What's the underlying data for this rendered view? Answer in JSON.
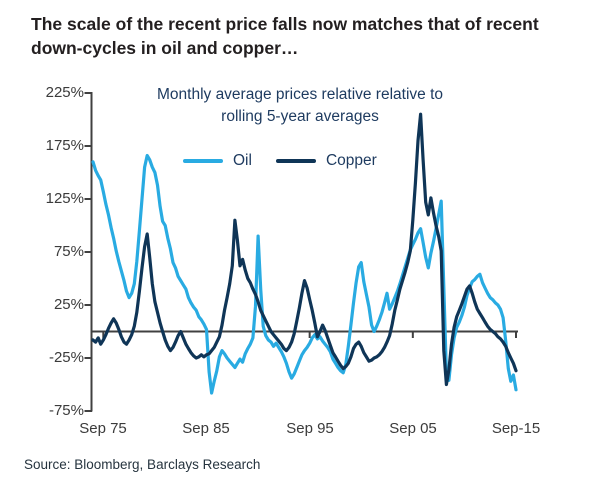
{
  "figure_title": "The scale of the recent price falls now matches that of recent down-cycles in oil and copper…",
  "source": "Source: Bloomberg, Barclays Research",
  "chart_data": {
    "type": "line",
    "subtitle1": "Monthly average prices relative relative to",
    "subtitle2": "rolling 5-year averages",
    "grid": false,
    "zero_axis": true,
    "legend_position": "top-center",
    "ylim": [
      -75,
      225
    ],
    "ytick_values": [
      225,
      175,
      125,
      75,
      25,
      -25,
      -75
    ],
    "ytick_labels": [
      "225%",
      "175%",
      "125%",
      "75%",
      "25%",
      "-25%",
      "-75%"
    ],
    "xlim": [
      1974.75,
      2015.75
    ],
    "xtick_values": [
      1975.75,
      1985.75,
      1995.75,
      2005.75,
      2015.75
    ],
    "xtick_labels": [
      "Sep 75",
      "Sep 85",
      "Sep 95",
      "Sep 05",
      "Sep-15"
    ],
    "x_unit": "decimal_year",
    "x_start": 1974.75,
    "x_step": 0.25,
    "series": [
      {
        "name": "Oil",
        "color": "#29ABE2",
        "values": [
          160,
          152,
          147,
          143,
          132,
          120,
          110,
          98,
          88,
          76,
          66,
          57,
          48,
          38,
          32,
          36,
          45,
          66,
          95,
          125,
          155,
          166,
          162,
          155,
          150,
          138,
          118,
          104,
          100,
          88,
          78,
          65,
          60,
          52,
          48,
          44,
          40,
          32,
          27,
          23,
          20,
          14,
          11,
          7,
          2,
          -38,
          -58,
          -47,
          -37,
          -24,
          -18,
          -21,
          -25,
          -28,
          -31,
          -34,
          -30,
          -26,
          -29,
          -21,
          -16,
          -12,
          -6,
          24,
          90,
          40,
          5,
          -4,
          -8,
          -10,
          -14,
          -11,
          -15,
          -19,
          -24,
          -30,
          -38,
          -44,
          -40,
          -34,
          -28,
          -22,
          -18,
          -15,
          -11,
          -6,
          -3,
          -7,
          -5,
          -9,
          -12,
          -15,
          -19,
          -26,
          -30,
          -34,
          -37,
          -39,
          -31,
          -14,
          6,
          27,
          46,
          61,
          65,
          47,
          35,
          23,
          6,
          0,
          5,
          11,
          18,
          27,
          36,
          21,
          26,
          32,
          38,
          45,
          53,
          61,
          69,
          77,
          82,
          87,
          93,
          97,
          84,
          70,
          60,
          74,
          85,
          97,
          110,
          123,
          42,
          -40,
          -46,
          -22,
          -6,
          4,
          9,
          15,
          23,
          34,
          41,
          47,
          49,
          52,
          54,
          46,
          41,
          36,
          32,
          30,
          27,
          25,
          21,
          13,
          -9,
          -35,
          -47,
          -41,
          -55
        ]
      },
      {
        "name": "Copper",
        "color": "#0F3557",
        "values": [
          -8,
          -10,
          -6,
          -12,
          -8,
          -3,
          3,
          8,
          12,
          8,
          2,
          -5,
          -10,
          -12,
          -8,
          -3,
          5,
          18,
          38,
          60,
          80,
          92,
          70,
          45,
          28,
          18,
          8,
          0,
          -8,
          -14,
          -18,
          -15,
          -10,
          -4,
          0,
          -6,
          -12,
          -16,
          -20,
          -23,
          -25,
          -24,
          -22,
          -24,
          -22,
          -21,
          -18,
          -15,
          -10,
          -5,
          6,
          20,
          32,
          45,
          62,
          105,
          86,
          62,
          68,
          58,
          50,
          46,
          40,
          35,
          28,
          20,
          15,
          10,
          5,
          0,
          -3,
          -6,
          -9,
          -12,
          -16,
          -18,
          -15,
          -10,
          -2,
          10,
          22,
          36,
          48,
          41,
          30,
          20,
          8,
          -5,
          0,
          6,
          1,
          -6,
          -13,
          -20,
          -24,
          -28,
          -32,
          -35,
          -33,
          -30,
          -24,
          -16,
          -12,
          -10,
          -14,
          -20,
          -24,
          -28,
          -27,
          -25,
          -24,
          -22,
          -19,
          -15,
          -10,
          -4,
          7,
          20,
          30,
          40,
          48,
          56,
          65,
          76,
          105,
          140,
          180,
          205,
          162,
          122,
          110,
          126,
          112,
          100,
          90,
          76,
          -18,
          -50,
          -36,
          -12,
          4,
          14,
          20,
          26,
          33,
          40,
          43,
          36,
          28,
          21,
          17,
          13,
          9,
          5,
          2,
          0,
          -2,
          -5,
          -7,
          -10,
          -14,
          -20,
          -25,
          -30,
          -37
        ]
      }
    ]
  }
}
